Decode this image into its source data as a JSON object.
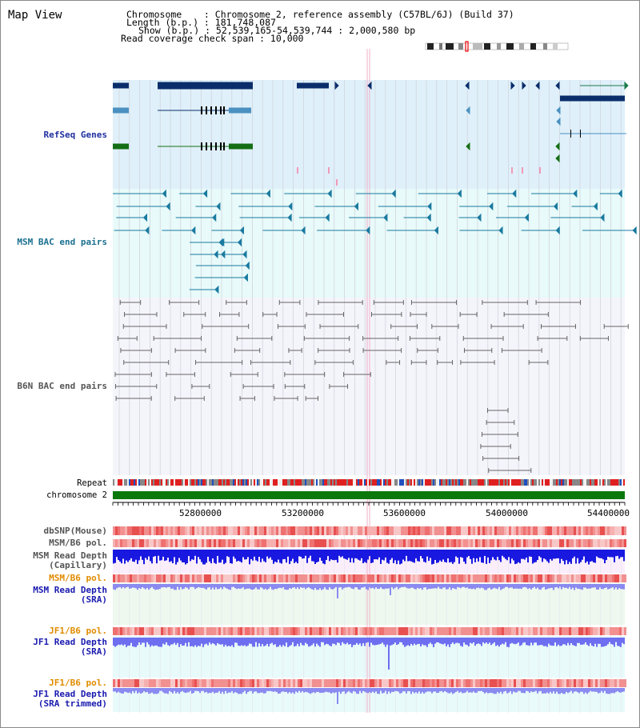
{
  "header": {
    "title": "Map View",
    "line1": "Chromosome    : Chromosome 2, reference assembly (C57BL/6J) (Build 37)",
    "line2": "Length (b.p.) : 181,748,087",
    "line3": "Show (b.p.) : 52,539,165-54,539,744 : 2,000,580 bp",
    "line4": "Read coverage check span : 10,000"
  },
  "tracks": {
    "refseq": "RefSeq Genes",
    "msm_bac": "MSM BAC end pairs",
    "b6n_bac": "B6N BAC end pairs",
    "repeat": "Repeat",
    "chromosome": "chromosome 2",
    "dbsnp": "dbSNP(Mouse)",
    "msm_b6_pol": "MSM/B6 pol.",
    "msm_read_depth_cap": "MSM Read Depth\n(Capillary)",
    "msm_b6_pol2": "MSM/B6 pol.",
    "msm_read_depth_sra": "MSM Read Depth\n(SRA)",
    "jf1_b6_pol": "JF1/B6 pol.",
    "jf1_read_depth_sra": "JF1 Read Depth\n(SRA)",
    "jf1_b6_pol2": "JF1/B6 pol.",
    "jf1_read_depth_trim": "JF1 Read Depth\n(SRA trimmed)"
  },
  "axis": {
    "ticks": [
      "52800000",
      "53200000",
      "53600000",
      "54000000",
      "54400000"
    ]
  },
  "colors": {
    "refseq_bg": "#dff0fa",
    "msm_bg": "#e8fafa",
    "b6n_bg": "#f4f4fb",
    "gene_dark": "#0a2e6b",
    "gene_blue": "#4a90c0",
    "gene_green": "#146e14",
    "msm_line": "#1a7aa0",
    "b6n_line": "#666666",
    "chrom_green": "#0a780a",
    "label_navy": "#1f2f9f",
    "label_teal": "#1a7090",
    "label_gray": "#555555",
    "label_orange": "#e08c00",
    "label_blue": "#1a1ab0"
  }
}
